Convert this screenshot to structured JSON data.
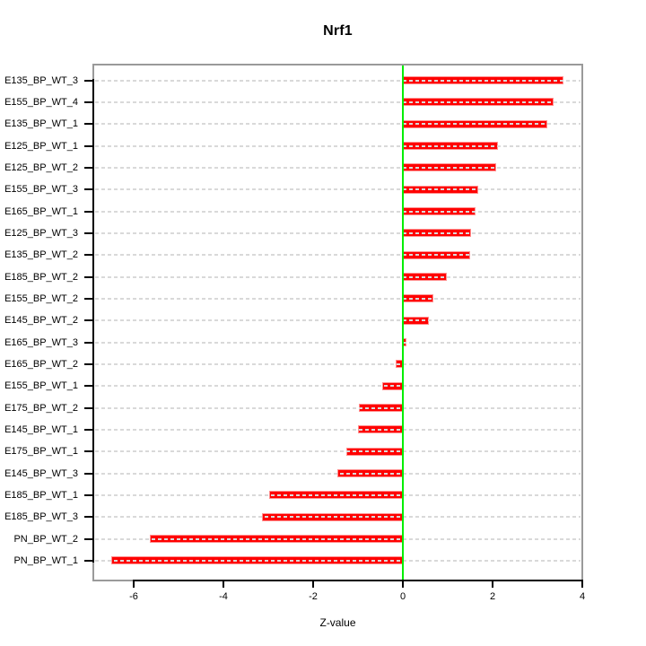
{
  "chart_data": {
    "type": "bar",
    "orientation": "horizontal",
    "title": "Nrf1",
    "xlabel": "Z-value",
    "ylabel": "",
    "legend": "none",
    "grid": "dashed horizontal row guides",
    "xlim": [
      -6.9,
      4.0
    ],
    "xticks": [
      -6,
      -4,
      -2,
      0,
      2,
      4
    ],
    "zero_line": 0,
    "categories": [
      "E135_BP_WT_3",
      "E155_BP_WT_4",
      "E135_BP_WT_1",
      "E125_BP_WT_1",
      "E125_BP_WT_2",
      "E155_BP_WT_3",
      "E165_BP_WT_1",
      "E125_BP_WT_3",
      "E135_BP_WT_2",
      "E185_BP_WT_2",
      "E155_BP_WT_2",
      "E145_BP_WT_2",
      "E165_BP_WT_3",
      "E165_BP_WT_2",
      "E155_BP_WT_1",
      "E175_BP_WT_2",
      "E145_BP_WT_1",
      "E175_BP_WT_1",
      "E145_BP_WT_3",
      "E185_BP_WT_1",
      "E185_BP_WT_3",
      "PN_BP_WT_2",
      "PN_BP_WT_1"
    ],
    "values": [
      3.58,
      3.35,
      3.22,
      2.11,
      2.07,
      1.68,
      1.62,
      1.51,
      1.5,
      0.98,
      0.67,
      0.58,
      0.07,
      -0.16,
      -0.46,
      -0.98,
      -1.0,
      -1.26,
      -1.46,
      -2.98,
      -3.15,
      -5.65,
      -6.51
    ],
    "colors": {
      "bar": "#ff0000",
      "bar_border": "#ff8f8f",
      "zero_line": "#00ee00",
      "grid": "#d9d9d9",
      "box": "#9a9a9a",
      "axis": "#000000",
      "text": "#000000",
      "background": "#ffffff"
    }
  }
}
